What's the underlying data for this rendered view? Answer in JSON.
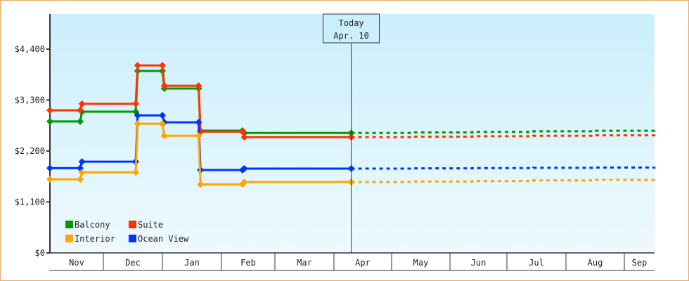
{
  "chart_data": {
    "type": "line",
    "title": "",
    "xlabel": "",
    "ylabel": "",
    "ylim": [
      0,
      5300
    ],
    "y_ticks": [
      "$0",
      "$1,100",
      "$2,200",
      "$3,300",
      "$4,400"
    ],
    "y_tick_values": [
      0,
      1100,
      2200,
      3300,
      4400
    ],
    "months": [
      "Nov",
      "Dec",
      "Jan",
      "Feb",
      "Mar",
      "Apr",
      "May",
      "Jun",
      "Jul",
      "Aug",
      "Sep"
    ],
    "today_marker": {
      "line1": "Today",
      "line2": "Apr. 10"
    },
    "legend": [
      {
        "name": "Balcony",
        "color": "#009900"
      },
      {
        "name": "Suite",
        "color": "#ff3300"
      },
      {
        "name": "Interior",
        "color": "#ffa500"
      },
      {
        "name": "Ocean View",
        "color": "#0033ff"
      }
    ],
    "grid": false,
    "legend_position": "lower-left",
    "series": [
      {
        "name": "Balcony",
        "color": "#009900",
        "history": [
          {
            "date": "Nov 1",
            "value": 2840
          },
          {
            "date": "Nov 18",
            "value": 2840
          },
          {
            "date": "Nov 19",
            "value": 3050
          },
          {
            "date": "Dec 18",
            "value": 3050
          },
          {
            "date": "Dec 19",
            "value": 3930
          },
          {
            "date": "Jan 1",
            "value": 3930
          },
          {
            "date": "Jan 2",
            "value": 3550
          },
          {
            "date": "Jan 20",
            "value": 3550
          },
          {
            "date": "Jan 21",
            "value": 2640
          },
          {
            "date": "Feb 12",
            "value": 2640
          },
          {
            "date": "Feb 13",
            "value": 2590
          },
          {
            "date": "Apr 10",
            "value": 2590
          }
        ],
        "forecast_end_value": 2650
      },
      {
        "name": "Suite",
        "color": "#ff3300",
        "history": [
          {
            "date": "Nov 1",
            "value": 3080
          },
          {
            "date": "Nov 18",
            "value": 3080
          },
          {
            "date": "Nov 19",
            "value": 3220
          },
          {
            "date": "Dec 18",
            "value": 3220
          },
          {
            "date": "Dec 19",
            "value": 4050
          },
          {
            "date": "Jan 1",
            "value": 4050
          },
          {
            "date": "Jan 2",
            "value": 3610
          },
          {
            "date": "Jan 20",
            "value": 3610
          },
          {
            "date": "Jan 21",
            "value": 2620
          },
          {
            "date": "Feb 12",
            "value": 2620
          },
          {
            "date": "Feb 13",
            "value": 2500
          },
          {
            "date": "Apr 10",
            "value": 2500
          }
        ],
        "forecast_end_value": 2550
      },
      {
        "name": "Ocean View",
        "color": "#0033ff",
        "history": [
          {
            "date": "Nov 1",
            "value": 1830
          },
          {
            "date": "Nov 18",
            "value": 1830
          },
          {
            "date": "Nov 19",
            "value": 1970
          },
          {
            "date": "Dec 18",
            "value": 1970
          },
          {
            "date": "Dec 19",
            "value": 2970
          },
          {
            "date": "Jan 1",
            "value": 2970
          },
          {
            "date": "Jan 2",
            "value": 2820
          },
          {
            "date": "Jan 20",
            "value": 2820
          },
          {
            "date": "Jan 21",
            "value": 1790
          },
          {
            "date": "Feb 12",
            "value": 1790
          },
          {
            "date": "Feb 13",
            "value": 1820
          },
          {
            "date": "Apr 10",
            "value": 1820
          }
        ],
        "forecast_end_value": 1850
      },
      {
        "name": "Interior",
        "color": "#ffa500",
        "history": [
          {
            "date": "Nov 1",
            "value": 1590
          },
          {
            "date": "Nov 18",
            "value": 1590
          },
          {
            "date": "Nov 19",
            "value": 1740
          },
          {
            "date": "Dec 18",
            "value": 1740
          },
          {
            "date": "Dec 19",
            "value": 2790
          },
          {
            "date": "Jan 1",
            "value": 2790
          },
          {
            "date": "Jan 2",
            "value": 2530
          },
          {
            "date": "Jan 20",
            "value": 2530
          },
          {
            "date": "Jan 21",
            "value": 1480
          },
          {
            "date": "Feb 12",
            "value": 1480
          },
          {
            "date": "Feb 13",
            "value": 1530
          },
          {
            "date": "Apr 10",
            "value": 1530
          }
        ],
        "forecast_end_value": 1590
      }
    ]
  }
}
